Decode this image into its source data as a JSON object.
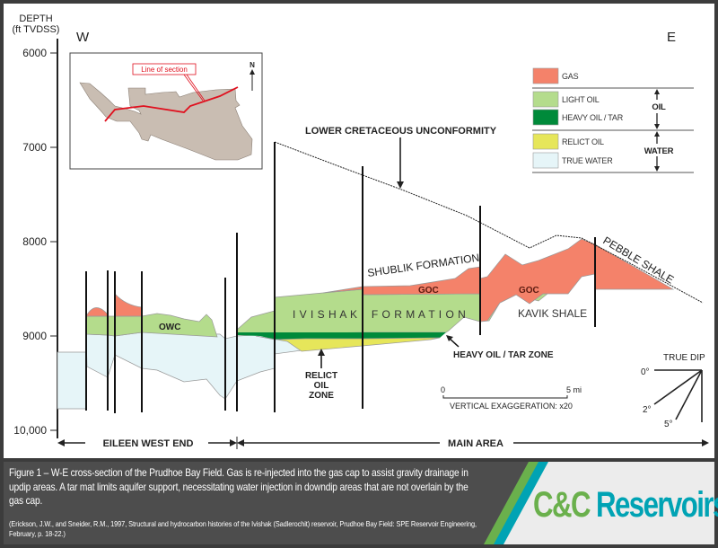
{
  "axis": {
    "title_line1": "DEPTH",
    "title_line2": "(ft TVDSS)",
    "ticks": [
      "6000",
      "7000",
      "8000",
      "9000",
      "10,000"
    ]
  },
  "directions": {
    "west": "W",
    "east": "E"
  },
  "inset": {
    "label": "Line of section",
    "north": "N"
  },
  "legend": {
    "items": [
      {
        "label": "GAS",
        "color": "#f4826a"
      },
      {
        "label": "LIGHT OIL",
        "color": "#b4dc8c"
      },
      {
        "label": "HEAVY OIL / TAR",
        "color": "#008a3a"
      },
      {
        "label": "RELICT OIL",
        "color": "#e6e65a"
      },
      {
        "label": "TRUE WATER",
        "color": "#e6f5f8"
      }
    ],
    "group_oil": "OIL",
    "group_water": "WATER"
  },
  "labels": {
    "unconformity": "LOWER CRETACEOUS UNCONFORMITY",
    "shublik": "SHUBLIK FORMATION",
    "goc": "GOC",
    "ivishak": "I V I S H A K    F O R M A T I O N",
    "kavik": "KAVIK SHALE",
    "pebble": "PEBBLE SHALE",
    "owc": "OWC",
    "relict_1": "RELICT",
    "relict_2": "OIL",
    "relict_3": "ZONE",
    "tar": "HEAVY OIL / TAR ZONE"
  },
  "scale": {
    "start": "0",
    "end": "5 mi",
    "exaggeration": "VERTICAL EXAGGERATION: x20"
  },
  "dip": {
    "title": "TRUE DIP",
    "angles": [
      "0°",
      "2°",
      "5°"
    ]
  },
  "areas": {
    "west": "EILEEN WEST END",
    "main": "MAIN AREA"
  },
  "caption": "Figure 1 – W-E cross-section of the Prudhoe Bay Field. Gas is re-injected into the gas cap to assist gravity drainage in updip areas. A tar mat limits aquifer support, necessitating water injection in downdip areas that are not overlain by the gas cap.",
  "reference": "(Erickson, J.W., and Sneider, R.M., 1997, Structural and hydrocarbon histories of the Ivishak (Sadlerochit) reservoir, Prudhoe Bay Field: SPE Reservoir Engineering, February, p. 18-22.)",
  "brand": {
    "part1": "C&C",
    "part2": "Reservoirs",
    "green": "#6ab04c",
    "teal": "#00a3b4"
  }
}
